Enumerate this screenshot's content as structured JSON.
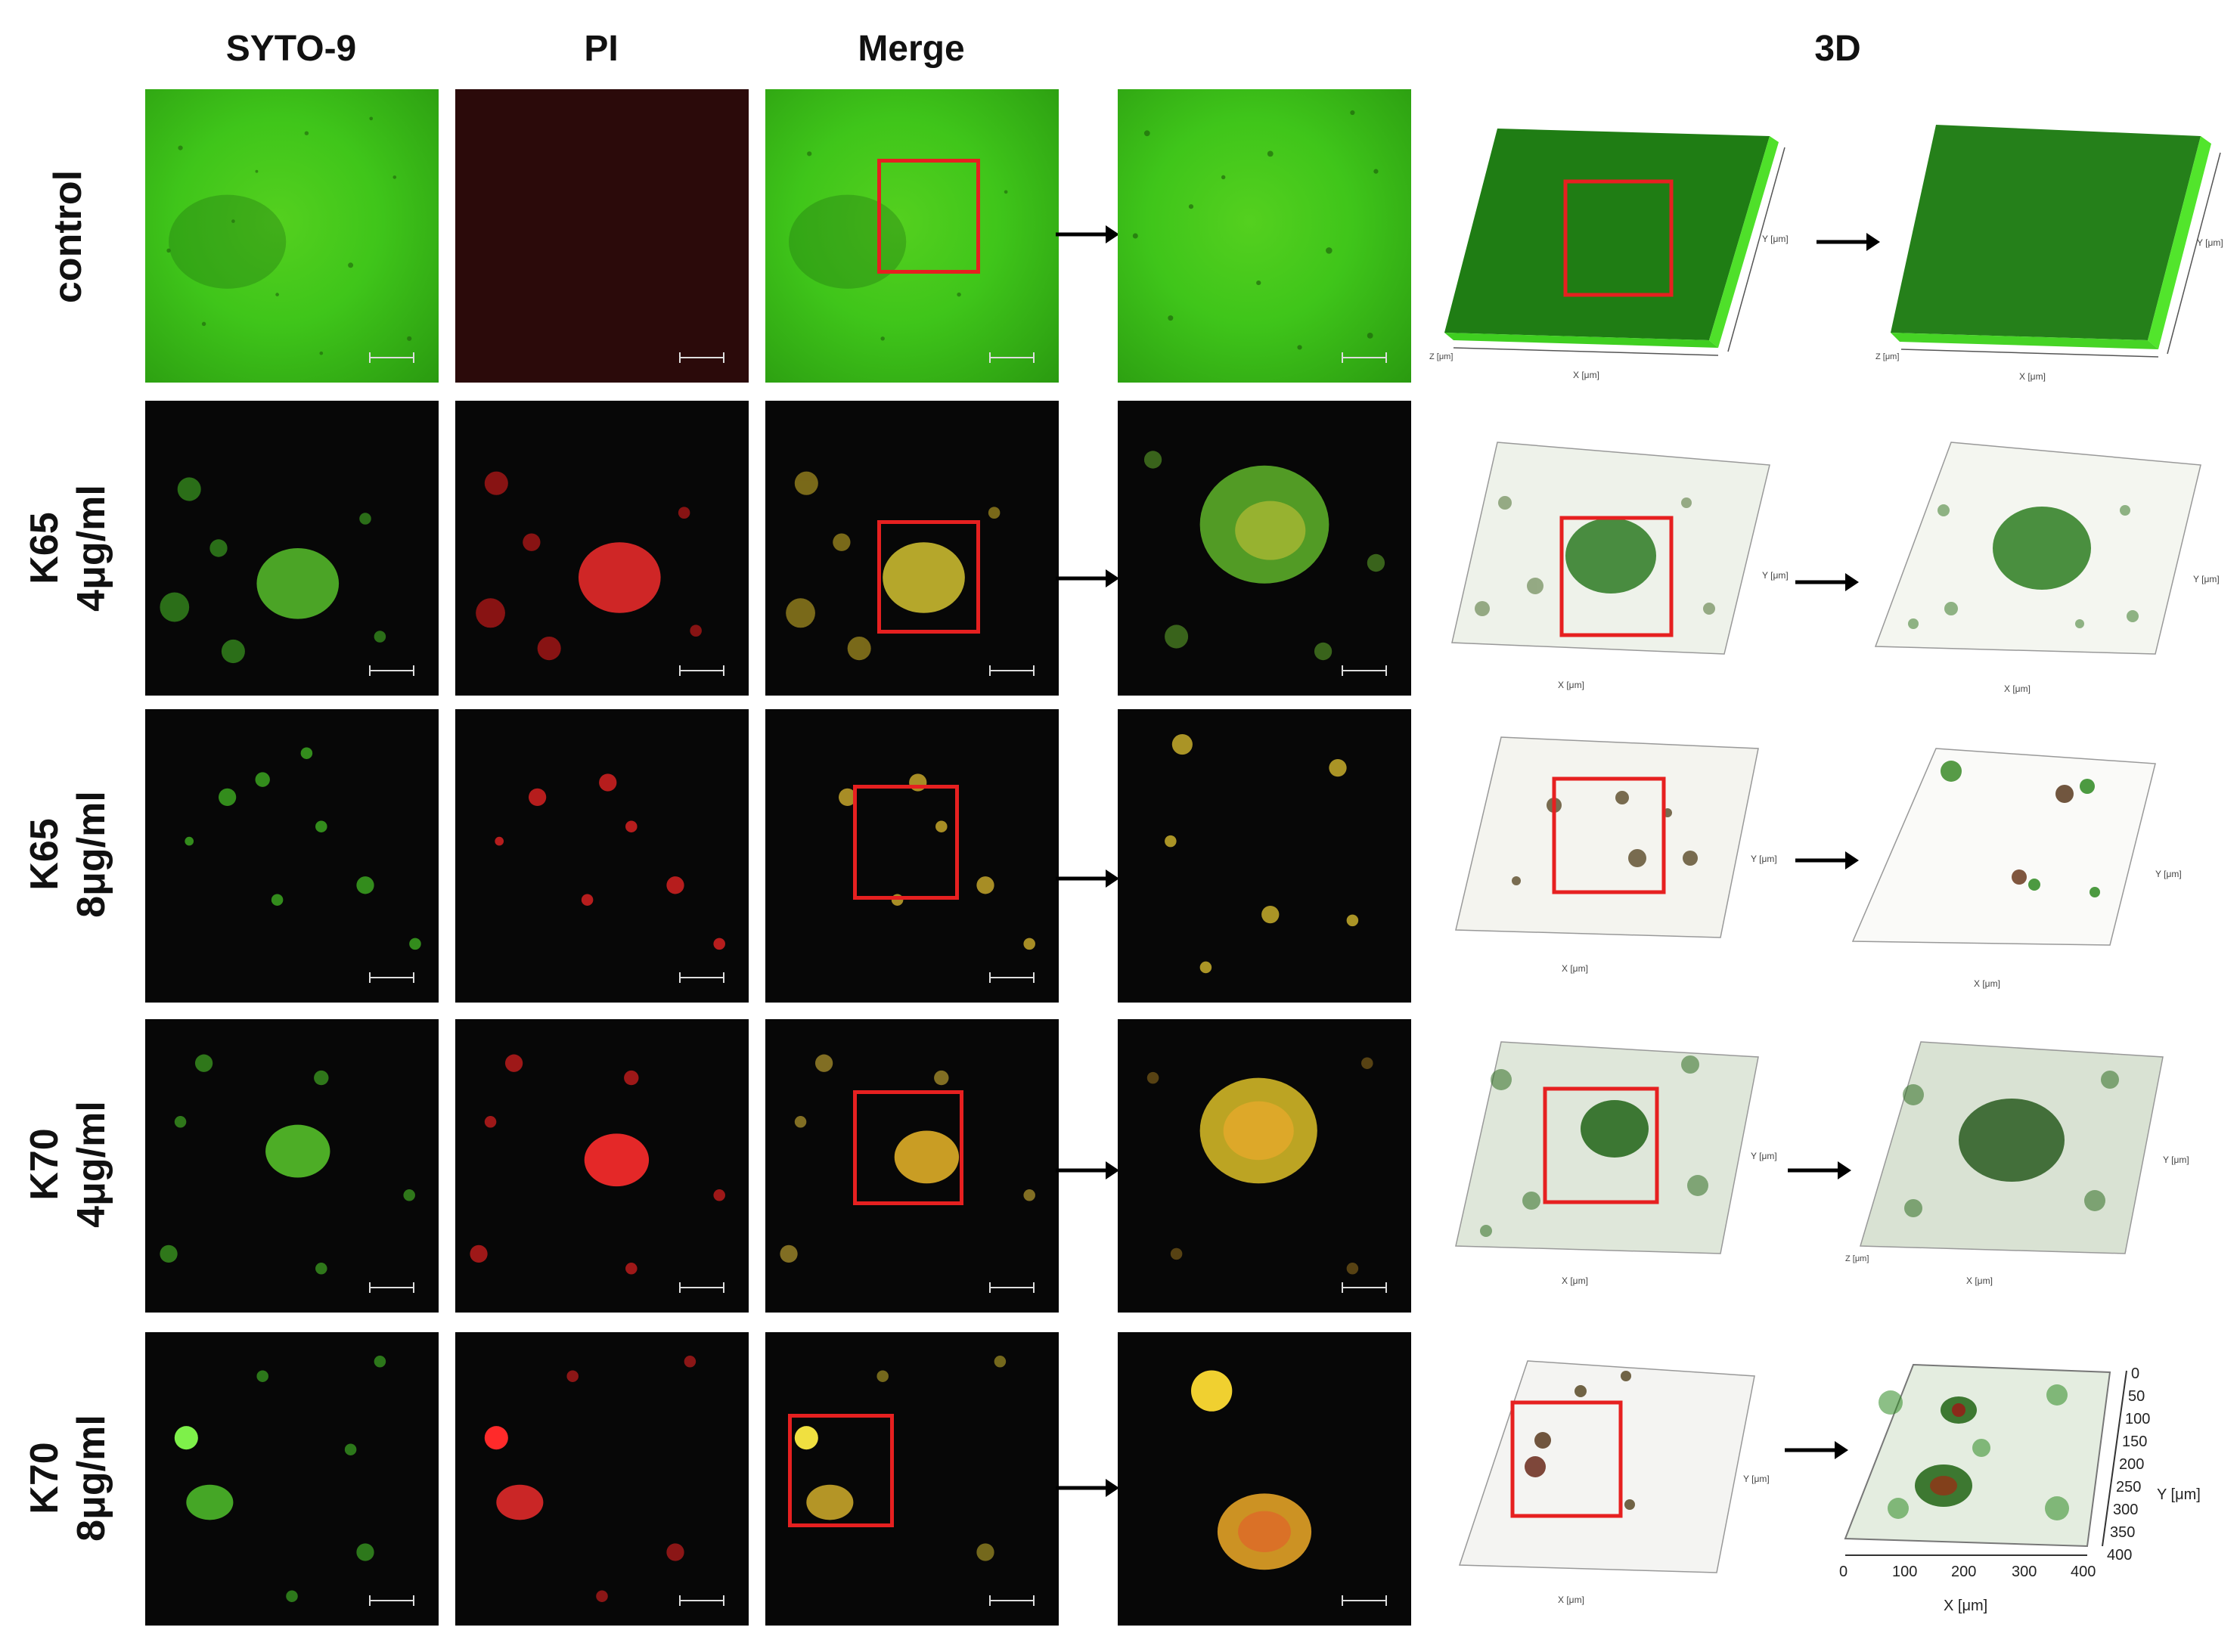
{
  "columns": {
    "syto9": "SYTO-9",
    "pi": "PI",
    "merge": "Merge",
    "threeD": "3D"
  },
  "rows": [
    {
      "line1": "control",
      "line2": ""
    },
    {
      "line1": "K65",
      "line2": "4μg/ml"
    },
    {
      "line1": "K65",
      "line2": "8μg/ml"
    },
    {
      "line1": "K70",
      "line2": "4μg/ml"
    },
    {
      "line1": "K70",
      "line2": "8μg/ml"
    }
  ],
  "plot_labels": {
    "x_axis": "X [μm]",
    "y_axis": "Y [μm]",
    "z_axis": "Z [μm]"
  },
  "last_zoom_axes": {
    "x_ticks": [
      "0",
      "100",
      "200",
      "300",
      "400"
    ],
    "y_ticks": [
      "0",
      "50",
      "100",
      "150",
      "200",
      "250",
      "300",
      "350",
      "400"
    ]
  },
  "colors": {
    "syto9": "#3cc61a",
    "pi": "#e01818",
    "selection_box": "#e62020"
  }
}
